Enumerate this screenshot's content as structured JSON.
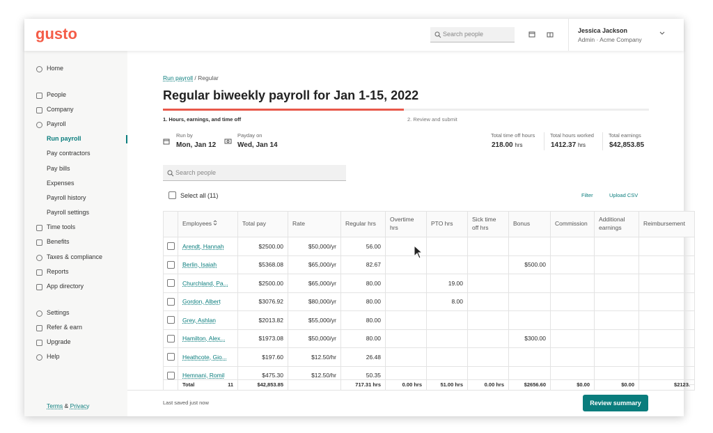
{
  "header": {
    "logo": "gusto",
    "search": "Search people",
    "user_name": "Jessica Jackson",
    "user_role": "Admin · Acme Company"
  },
  "sidebar": {
    "items": [
      "Home",
      "People",
      "Company",
      "Payroll",
      "Run payroll",
      "Pay contractors",
      "Pay bills",
      "Expenses",
      "Payroll history",
      "Payroll settings",
      "Time tools",
      "Benefits",
      "Taxes & compliance",
      "Reports",
      "App directory",
      "Settings",
      "Refer & earn",
      "Upgrade",
      "Help"
    ],
    "terms": "Terms",
    "amp": "&",
    "privacy": "Privacy"
  },
  "breadcrumb": {
    "link": "Run payroll",
    "separator": "/",
    "current": "Regular"
  },
  "title": "Regular biweekly payroll for Jan 1-15, 2022",
  "steps": [
    "1. Hours, earnings, and time off",
    "2. Review and submit"
  ],
  "run_by": {
    "label": "Run by",
    "value": "Mon, Jan 12"
  },
  "payday": {
    "label": "Payday on",
    "value": "Wed, Jan 14"
  },
  "totals": [
    {
      "label": "Total time off hours",
      "value": "218.00",
      "unit": "hrs"
    },
    {
      "label": "Total hours worked",
      "value": "1412.37",
      "unit": "hrs"
    },
    {
      "label": "Total earnings",
      "value": "$42,853.85"
    }
  ],
  "table": {
    "search": "Search people",
    "select_all": "Select all (11)",
    "filter": "Filter",
    "upload": "Upload CSV",
    "columns": [
      "Employees",
      "Total pay",
      "Rate",
      "Regular hrs",
      "Overtime hrs",
      "PTO hrs",
      "Sick time off hrs",
      "Bonus",
      "Commission",
      "Additional earnings",
      "Reimbursement"
    ],
    "rows": [
      [
        "Arendt, Hannah",
        "$2500.00",
        "$50,000/yr",
        "56.00",
        null,
        null,
        null,
        null,
        null,
        null,
        null
      ],
      [
        "Berlin, Isaiah",
        "$5368.08",
        "$65,000/yr",
        "82.67",
        null,
        null,
        null,
        "$500.00",
        null,
        null,
        null
      ],
      [
        "Churchland, Pa...",
        "$2500.00",
        "$65,000/yr",
        "80.00",
        null,
        "19.00",
        null,
        null,
        null,
        null,
        null
      ],
      [
        "Gordon, Albert",
        "$3076.92",
        "$80,000/yr",
        "80.00",
        null,
        "8.00",
        null,
        null,
        null,
        null,
        null
      ],
      [
        "Grey, Ashlan",
        "$2013.82",
        "$55,000/yr",
        "80.00",
        null,
        null,
        null,
        null,
        null,
        null,
        null
      ],
      [
        "Hamilton, Alex...",
        "$1973.08",
        "$50,000/yr",
        "80.00",
        null,
        null,
        null,
        "$300.00",
        null,
        null,
        null
      ],
      [
        "Heathcote, Gio...",
        "$197.60",
        "$12.50/hr",
        "26.48",
        null,
        null,
        null,
        null,
        null,
        null,
        null
      ],
      [
        "Hemnani, Romil",
        "$475.30",
        "$12.50/hr",
        "50.35",
        null,
        null,
        null,
        null,
        null,
        null,
        null
      ]
    ],
    "total_row": {
      "label": "Total",
      "count": "11",
      "cells": [
        "$42,853.85",
        null,
        "717.31 hrs",
        "0.00 hrs",
        "51.00 hrs",
        "0.00 hrs",
        "$2656.60",
        "$0.00",
        "$0.00",
        "$2123."
      ]
    }
  },
  "footer": {
    "saved": "Last saved just now",
    "button": "Review summary"
  }
}
